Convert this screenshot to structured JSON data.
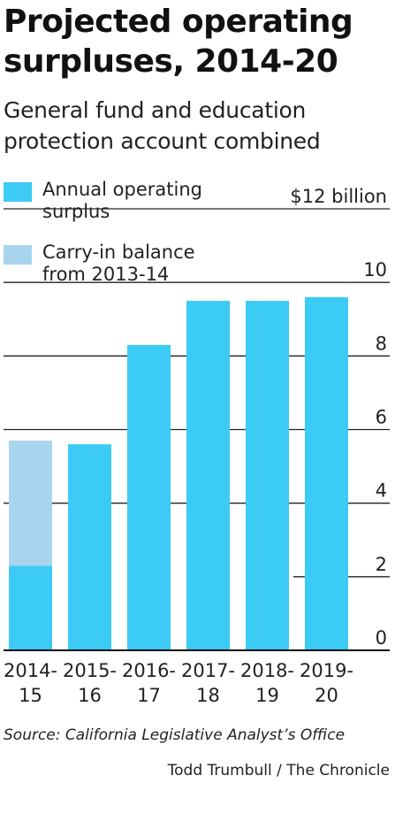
{
  "colors": {
    "surplus": "#3ccbf4",
    "carry_in": "#a9d4ee",
    "grid": "#222222"
  },
  "chart_data": {
    "type": "bar",
    "stacked": true,
    "title": "Projected operating surpluses, 2014-20",
    "subtitle": "General fund and education protection account combined",
    "categories": [
      [
        "2014-",
        "15"
      ],
      [
        "2015-",
        "16"
      ],
      [
        "2016-",
        "17"
      ],
      [
        "2017-",
        "18"
      ],
      [
        "2018-",
        "19"
      ],
      [
        "2019-",
        "20"
      ]
    ],
    "series": [
      {
        "name": "Annual operating surplus",
        "legend_lines": [
          "Annual operating",
          "surplus"
        ],
        "color": "#3ccbf4",
        "values": [
          2.3,
          5.6,
          8.3,
          9.5,
          9.5,
          9.6
        ]
      },
      {
        "name": "Carry-in balance from 2013-14",
        "legend_lines": [
          "Carry-in balance",
          "from 2013-14"
        ],
        "color": "#a9d4ee",
        "values": [
          3.4,
          0,
          0,
          0,
          0,
          0
        ]
      }
    ],
    "yticks": [
      {
        "value": 0,
        "label": "0"
      },
      {
        "value": 2,
        "label": "2"
      },
      {
        "value": 4,
        "label": "4"
      },
      {
        "value": 6,
        "label": "6"
      },
      {
        "value": 8,
        "label": "8"
      },
      {
        "value": 10,
        "label": "10"
      },
      {
        "value": 12,
        "label": "$12 billion"
      }
    ],
    "ylim": [
      0,
      12
    ],
    "ylabel": "",
    "xlabel": "",
    "grid": true,
    "legend_position": "top-left"
  },
  "footer": {
    "source": "Source: California Legislative Analyst’s Office",
    "credit": "Todd Trumbull / The Chronicle"
  }
}
